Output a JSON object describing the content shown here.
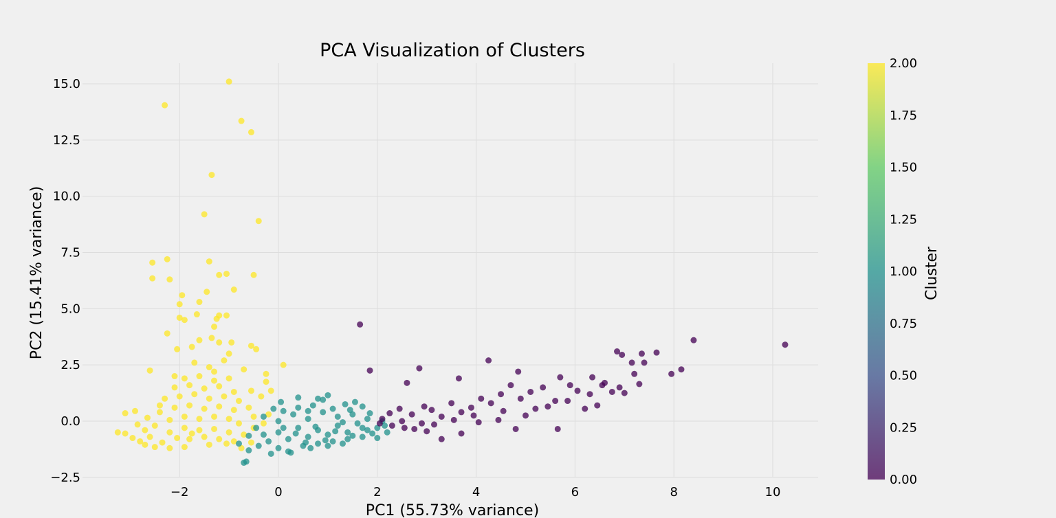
{
  "chart_data": {
    "type": "scatter",
    "title": "PCA Visualization of Clusters",
    "xlabel": "PC1 (55.73% variance)",
    "ylabel": "PC2 (15.41% variance)",
    "xlim": [
      -3.8,
      10.9
    ],
    "ylim": [
      -2.8,
      15.9
    ],
    "x_ticks": [
      -2,
      0,
      2,
      4,
      6,
      8,
      10
    ],
    "x_tick_labels": [
      "−2",
      "0",
      "2",
      "4",
      "6",
      "8",
      "10"
    ],
    "y_ticks": [
      -2.5,
      0.0,
      2.5,
      5.0,
      7.5,
      10.0,
      12.5,
      15.0
    ],
    "y_tick_labels": [
      "−2.5",
      "0.0",
      "2.5",
      "5.0",
      "7.5",
      "10.0",
      "12.5",
      "15.0"
    ],
    "grid": true,
    "colorbar": {
      "label": "Cluster",
      "range": [
        0.0,
        2.0
      ],
      "ticks": [
        0.0,
        0.25,
        0.5,
        0.75,
        1.0,
        1.25,
        1.5,
        1.75,
        2.0
      ],
      "tick_labels": [
        "0.00",
        "0.25",
        "0.50",
        "0.75",
        "1.00",
        "1.25",
        "1.50",
        "1.75",
        "2.00"
      ],
      "colormap": [
        "#440154",
        "#3b528b",
        "#21918c",
        "#5ec962",
        "#fde725"
      ]
    },
    "series": [
      {
        "cluster": 2,
        "color": "#fde725",
        "points": [
          [
            -1.0,
            15.1
          ],
          [
            -2.3,
            14.05
          ],
          [
            -0.75,
            13.35
          ],
          [
            -0.55,
            12.85
          ],
          [
            -1.35,
            10.95
          ],
          [
            -1.5,
            9.2
          ],
          [
            -0.4,
            8.9
          ],
          [
            -2.55,
            7.05
          ],
          [
            -2.25,
            7.2
          ],
          [
            -1.4,
            7.1
          ],
          [
            -2.55,
            6.35
          ],
          [
            -2.2,
            6.3
          ],
          [
            -1.2,
            6.5
          ],
          [
            -1.05,
            6.55
          ],
          [
            -0.5,
            6.5
          ],
          [
            -0.9,
            5.85
          ],
          [
            -1.45,
            5.75
          ],
          [
            -1.95,
            5.6
          ],
          [
            -1.6,
            5.3
          ],
          [
            -2.0,
            5.2
          ],
          [
            -1.2,
            4.7
          ],
          [
            -1.05,
            4.7
          ],
          [
            -1.25,
            4.55
          ],
          [
            -1.65,
            4.75
          ],
          [
            -2.0,
            4.6
          ],
          [
            -1.9,
            4.5
          ],
          [
            -1.3,
            4.2
          ],
          [
            -2.25,
            3.9
          ],
          [
            -1.6,
            3.6
          ],
          [
            -1.35,
            3.7
          ],
          [
            -1.2,
            3.5
          ],
          [
            -0.95,
            3.5
          ],
          [
            -0.55,
            3.35
          ],
          [
            -0.45,
            3.2
          ],
          [
            -1.75,
            3.3
          ],
          [
            -2.05,
            3.2
          ],
          [
            -1.0,
            3.0
          ],
          [
            0.1,
            2.5
          ],
          [
            -0.7,
            2.3
          ],
          [
            -0.25,
            2.1
          ],
          [
            -2.6,
            2.25
          ],
          [
            -2.1,
            2.0
          ],
          [
            -1.3,
            2.2
          ],
          [
            -0.25,
            1.75
          ],
          [
            -0.55,
            1.35
          ],
          [
            -0.35,
            1.1
          ],
          [
            -0.15,
            1.35
          ],
          [
            -2.9,
            0.45
          ],
          [
            -3.1,
            0.35
          ],
          [
            -2.4,
            0.7
          ],
          [
            -3.25,
            -0.5
          ],
          [
            -3.1,
            -0.55
          ],
          [
            -2.95,
            -0.75
          ],
          [
            -2.8,
            -0.9
          ],
          [
            -2.7,
            -1.05
          ],
          [
            -2.5,
            -1.15
          ],
          [
            -2.2,
            -1.2
          ],
          [
            -1.9,
            -1.15
          ],
          [
            -1.4,
            -1.05
          ],
          [
            -1.05,
            -1.0
          ],
          [
            -2.6,
            -0.7
          ],
          [
            -2.2,
            -0.5
          ],
          [
            -1.9,
            -0.3
          ],
          [
            -1.6,
            -0.4
          ],
          [
            -1.3,
            -0.35
          ],
          [
            -1.0,
            -0.5
          ],
          [
            -0.7,
            -0.6
          ],
          [
            -0.5,
            -0.3
          ],
          [
            -0.3,
            -0.1
          ],
          [
            -0.2,
            0.3
          ],
          [
            -2.5,
            -0.2
          ],
          [
            -2.2,
            0.05
          ],
          [
            -1.9,
            0.2
          ],
          [
            -1.6,
            0.1
          ],
          [
            -1.3,
            0.2
          ],
          [
            -1.0,
            0.1
          ],
          [
            -0.8,
            -0.1
          ],
          [
            -0.5,
            0.2
          ],
          [
            -2.4,
            0.4
          ],
          [
            -2.1,
            0.6
          ],
          [
            -1.8,
            0.7
          ],
          [
            -1.5,
            0.55
          ],
          [
            -1.2,
            0.65
          ],
          [
            -0.9,
            0.5
          ],
          [
            -0.6,
            0.6
          ],
          [
            -2.3,
            1.0
          ],
          [
            -2.0,
            1.1
          ],
          [
            -1.7,
            1.2
          ],
          [
            -1.4,
            1.0
          ],
          [
            -1.1,
            1.1
          ],
          [
            -0.8,
            0.9
          ],
          [
            -2.1,
            1.5
          ],
          [
            -1.8,
            1.6
          ],
          [
            -1.5,
            1.45
          ],
          [
            -1.2,
            1.55
          ],
          [
            -0.9,
            1.3
          ],
          [
            -1.9,
            1.9
          ],
          [
            -1.6,
            2.0
          ],
          [
            -1.3,
            1.8
          ],
          [
            -1.0,
            1.9
          ],
          [
            -1.7,
            2.6
          ],
          [
            -1.4,
            2.4
          ],
          [
            -1.1,
            2.7
          ],
          [
            -1.8,
            -0.8
          ],
          [
            -1.5,
            -0.7
          ],
          [
            -1.2,
            -0.8
          ],
          [
            -0.9,
            -0.9
          ],
          [
            -2.7,
            -0.4
          ],
          [
            -2.85,
            -0.15
          ],
          [
            -2.65,
            0.15
          ],
          [
            -0.75,
            -1.2
          ],
          [
            -0.55,
            -0.95
          ],
          [
            -2.35,
            -0.95
          ],
          [
            -2.05,
            -0.75
          ],
          [
            -1.75,
            -0.55
          ]
        ]
      },
      {
        "cluster": 1,
        "color": "#21918c",
        "points": [
          [
            0.0,
            -0.5
          ],
          [
            0.2,
            -0.8
          ],
          [
            0.4,
            -0.3
          ],
          [
            0.6,
            -0.7
          ],
          [
            0.8,
            -0.4
          ],
          [
            1.0,
            -0.6
          ],
          [
            1.2,
            -0.2
          ],
          [
            1.4,
            -0.5
          ],
          [
            1.6,
            -0.1
          ],
          [
            1.8,
            -0.4
          ],
          [
            2.0,
            -0.3
          ],
          [
            2.2,
            -0.5
          ],
          [
            -0.2,
            -0.9
          ],
          [
            -0.4,
            -1.1
          ],
          [
            -0.6,
            -1.3
          ],
          [
            -0.7,
            -1.85
          ],
          [
            -0.65,
            -1.8
          ],
          [
            0.0,
            -1.2
          ],
          [
            0.2,
            -1.35
          ],
          [
            0.5,
            -1.1
          ],
          [
            0.8,
            -1.0
          ],
          [
            1.1,
            -0.9
          ],
          [
            1.4,
            -0.8
          ],
          [
            1.7,
            -0.7
          ],
          [
            2.0,
            -0.75
          ],
          [
            0.0,
            0.0
          ],
          [
            0.3,
            0.3
          ],
          [
            0.6,
            0.1
          ],
          [
            0.9,
            0.4
          ],
          [
            1.2,
            0.2
          ],
          [
            1.5,
            0.3
          ],
          [
            1.8,
            0.1
          ],
          [
            2.1,
            0.0
          ],
          [
            0.4,
            0.6
          ],
          [
            0.7,
            0.7
          ],
          [
            0.8,
            1.0
          ],
          [
            1.0,
            1.15
          ],
          [
            0.4,
            1.05
          ],
          [
            0.9,
            0.95
          ],
          [
            1.35,
            0.75
          ],
          [
            1.55,
            0.85
          ],
          [
            1.7,
            0.65
          ],
          [
            0.1,
            0.45
          ],
          [
            -0.1,
            0.55
          ],
          [
            -0.3,
            0.2
          ],
          [
            -0.45,
            -0.3
          ],
          [
            -0.6,
            -0.65
          ],
          [
            -0.8,
            -1.0
          ],
          [
            -0.3,
            -0.6
          ],
          [
            0.1,
            -0.3
          ],
          [
            0.35,
            -0.55
          ],
          [
            0.55,
            -0.95
          ],
          [
            0.75,
            -0.25
          ],
          [
            0.95,
            -0.85
          ],
          [
            1.15,
            -0.45
          ],
          [
            1.3,
            -0.05
          ],
          [
            1.5,
            -0.65
          ],
          [
            1.7,
            -0.3
          ],
          [
            1.9,
            -0.55
          ],
          [
            2.15,
            -0.2
          ],
          [
            0.25,
            -1.4
          ],
          [
            -0.15,
            -1.45
          ],
          [
            0.65,
            -1.2
          ],
          [
            1.0,
            -1.1
          ],
          [
            1.3,
            -1.0
          ],
          [
            0.05,
            0.85
          ],
          [
            0.6,
            0.45
          ],
          [
            1.1,
            0.55
          ],
          [
            1.45,
            0.5
          ],
          [
            1.85,
            0.35
          ]
        ]
      },
      {
        "cluster": 0,
        "color": "#440154",
        "points": [
          [
            10.25,
            3.4
          ],
          [
            8.4,
            3.6
          ],
          [
            8.15,
            2.3
          ],
          [
            7.95,
            2.1
          ],
          [
            7.65,
            3.05
          ],
          [
            7.4,
            2.6
          ],
          [
            7.35,
            3.0
          ],
          [
            7.3,
            1.65
          ],
          [
            7.15,
            2.6
          ],
          [
            7.2,
            2.1
          ],
          [
            6.85,
            3.1
          ],
          [
            6.95,
            2.95
          ],
          [
            6.9,
            1.5
          ],
          [
            6.6,
            1.7
          ],
          [
            6.35,
            1.95
          ],
          [
            6.3,
            1.2
          ],
          [
            6.05,
            1.35
          ],
          [
            5.9,
            1.6
          ],
          [
            5.7,
            1.95
          ],
          [
            5.6,
            0.9
          ],
          [
            5.35,
            1.5
          ],
          [
            5.1,
            1.3
          ],
          [
            4.9,
            1.0
          ],
          [
            4.7,
            1.6
          ],
          [
            4.5,
            1.2
          ],
          [
            4.3,
            0.8
          ],
          [
            4.1,
            1.0
          ],
          [
            3.9,
            0.6
          ],
          [
            3.7,
            0.4
          ],
          [
            3.5,
            0.8
          ],
          [
            3.3,
            0.2
          ],
          [
            3.1,
            0.5
          ],
          [
            2.9,
            -0.1
          ],
          [
            2.7,
            0.3
          ],
          [
            2.5,
            0.0
          ],
          [
            2.3,
            -0.2
          ],
          [
            2.1,
            0.1
          ],
          [
            1.65,
            4.3
          ],
          [
            1.85,
            2.25
          ],
          [
            2.85,
            2.35
          ],
          [
            4.25,
            2.7
          ],
          [
            4.85,
            2.2
          ],
          [
            3.65,
            1.9
          ],
          [
            2.6,
            1.7
          ],
          [
            3.3,
            -0.8
          ],
          [
            3.7,
            -0.55
          ],
          [
            4.8,
            -0.35
          ],
          [
            5.65,
            -0.35
          ],
          [
            6.2,
            0.55
          ],
          [
            6.45,
            0.7
          ],
          [
            5.85,
            0.9
          ],
          [
            5.2,
            0.55
          ],
          [
            4.55,
            0.45
          ],
          [
            3.95,
            0.25
          ],
          [
            2.95,
            0.65
          ],
          [
            2.45,
            0.55
          ],
          [
            2.25,
            0.35
          ],
          [
            2.75,
            -0.35
          ],
          [
            3.15,
            -0.15
          ],
          [
            3.55,
            0.05
          ],
          [
            4.05,
            -0.05
          ],
          [
            4.45,
            0.05
          ],
          [
            5.0,
            0.25
          ],
          [
            5.45,
            0.65
          ],
          [
            6.75,
            1.3
          ],
          [
            7.0,
            1.25
          ],
          [
            6.55,
            1.6
          ],
          [
            3.0,
            -0.45
          ],
          [
            2.55,
            -0.3
          ],
          [
            2.05,
            -0.1
          ]
        ]
      }
    ]
  }
}
